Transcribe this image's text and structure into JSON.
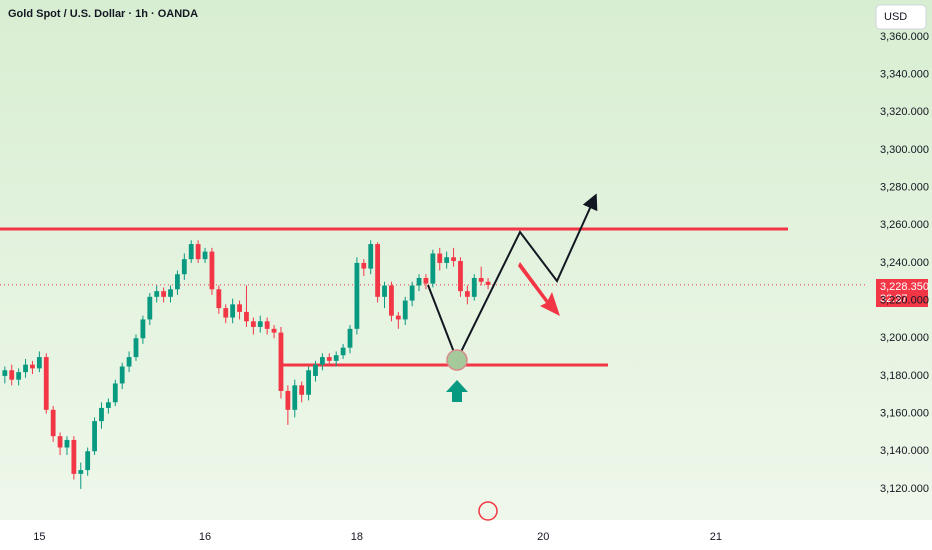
{
  "chart_data": {
    "type": "candlestick",
    "title": "Gold Spot / U.S. Dollar · 1h · OANDA",
    "currency": "USD",
    "up_color": "#089981",
    "down_color": "#f23645",
    "x": [
      0,
      1,
      2,
      3,
      4,
      5,
      6,
      7,
      8,
      9,
      10,
      11,
      12,
      13,
      14,
      15,
      16,
      17,
      18,
      19,
      20,
      21,
      22,
      23,
      24,
      25,
      26,
      27,
      28,
      29,
      30,
      31,
      32,
      33,
      34,
      35,
      36,
      37,
      38,
      39,
      40,
      41,
      42,
      43,
      44,
      45,
      46,
      47,
      48,
      49,
      50,
      51,
      52,
      53,
      54,
      55,
      56,
      57,
      58,
      59,
      60,
      61,
      62,
      63,
      64,
      65,
      66,
      67,
      68,
      69,
      70
    ],
    "open": [
      3180,
      3183,
      3178,
      3182,
      3186,
      3184,
      3190,
      3162,
      3148,
      3142,
      3146,
      3128,
      3130,
      3140,
      3156,
      3163,
      3166,
      3176,
      3185,
      3190,
      3200,
      3210,
      3222,
      3225,
      3222,
      3226,
      3234,
      3242,
      3250,
      3242,
      3246,
      3226,
      3216,
      3211,
      3218,
      3214,
      3209,
      3206,
      3209,
      3205,
      3203,
      3172,
      3162,
      3175,
      3170,
      3180,
      3186,
      3190,
      3188,
      3191,
      3195,
      3205,
      3240,
      3237,
      3250,
      3222,
      3228,
      3212,
      3210,
      3220,
      3228,
      3232,
      3229,
      3245,
      3240,
      3243,
      3241,
      3225,
      3222,
      3232,
      3230
    ],
    "high": [
      3185,
      3186,
      3184,
      3189,
      3188,
      3193,
      3192,
      3164,
      3150,
      3148,
      3148,
      3134,
      3142,
      3158,
      3166,
      3168,
      3178,
      3187,
      3193,
      3202,
      3212,
      3224,
      3228,
      3227,
      3228,
      3236,
      3245,
      3252,
      3252,
      3248,
      3248,
      3228,
      3218,
      3221,
      3220,
      3228,
      3211,
      3212,
      3211,
      3207,
      3206,
      3175,
      3178,
      3177,
      3185,
      3188,
      3192,
      3192,
      3193,
      3197,
      3207,
      3243,
      3242,
      3252,
      3251,
      3230,
      3230,
      3214,
      3222,
      3230,
      3234,
      3234,
      3247,
      3248,
      3246,
      3248,
      3243,
      3228,
      3234,
      3238,
      3232
    ],
    "low": [
      3176,
      3175,
      3175,
      3179,
      3181,
      3182,
      3160,
      3145,
      3138,
      3138,
      3125,
      3120,
      3127,
      3138,
      3152,
      3160,
      3164,
      3173,
      3182,
      3188,
      3197,
      3207,
      3219,
      3219,
      3219,
      3223,
      3231,
      3240,
      3240,
      3240,
      3223,
      3213,
      3208,
      3208,
      3210,
      3206,
      3202,
      3203,
      3202,
      3200,
      3168,
      3154,
      3158,
      3166,
      3167,
      3177,
      3183,
      3185,
      3185,
      3189,
      3192,
      3202,
      3233,
      3234,
      3219,
      3216,
      3209,
      3205,
      3207,
      3217,
      3225,
      3226,
      3227,
      3236,
      3237,
      3238,
      3222,
      3218,
      3220,
      3228,
      3226
    ],
    "close": [
      3183,
      3178,
      3182,
      3186,
      3184,
      3190,
      3162,
      3148,
      3142,
      3146,
      3128,
      3130,
      3140,
      3156,
      3163,
      3166,
      3176,
      3185,
      3190,
      3200,
      3210,
      3222,
      3225,
      3222,
      3226,
      3234,
      3242,
      3250,
      3242,
      3246,
      3226,
      3216,
      3211,
      3218,
      3214,
      3209,
      3206,
      3209,
      3205,
      3203,
      3172,
      3162,
      3175,
      3170,
      3183,
      3186,
      3190,
      3188,
      3191,
      3195,
      3205,
      3240,
      3237,
      3250,
      3222,
      3228,
      3212,
      3210,
      3220,
      3228,
      3232,
      3229,
      3245,
      3240,
      3243,
      3241,
      3225,
      3222,
      3232,
      3230,
      3228.35
    ],
    "xlim": [
      -0.7,
      124.6
    ],
    "xticks": [
      {
        "value": 5,
        "label": "15"
      },
      {
        "value": 29,
        "label": "16"
      },
      {
        "value": 51,
        "label": "18"
      },
      {
        "value": 78,
        "label": "20"
      },
      {
        "value": 103,
        "label": "21"
      }
    ],
    "ylim": [
      3103.5,
      3379.6
    ],
    "yticks": [
      {
        "value": 3120,
        "label": "3,120.000"
      },
      {
        "value": 3140,
        "label": "3,140.000"
      },
      {
        "value": 3160,
        "label": "3,160.000"
      },
      {
        "value": 3180,
        "label": "3,180.000"
      },
      {
        "value": 3200,
        "label": "3,200.000"
      },
      {
        "value": 3220,
        "label": "3,220.000"
      },
      {
        "value": 3240,
        "label": "3,240.000"
      },
      {
        "value": 3260,
        "label": "3,260.000"
      },
      {
        "value": 3280,
        "label": "3,280.000"
      },
      {
        "value": 3300,
        "label": "3,300.000"
      },
      {
        "value": 3320,
        "label": "3,320.000"
      },
      {
        "value": 3340,
        "label": "3,340.000"
      },
      {
        "value": 3360,
        "label": "3,360.000"
      }
    ],
    "last_price": 3228.35,
    "last_price_label": "3,228.350",
    "countdown": "32:37",
    "grid": false
  }
}
